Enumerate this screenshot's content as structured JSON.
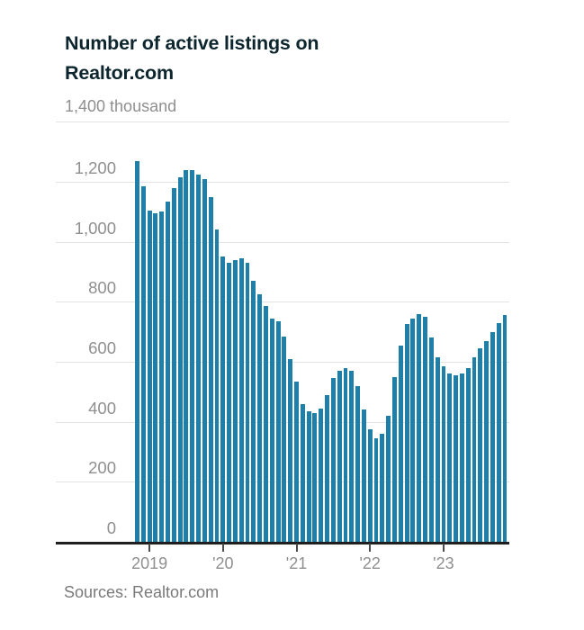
{
  "title": {
    "line1": "Number of active listings on",
    "line2": "Realtor.com"
  },
  "source": "Sources: Realtor.com",
  "y_axis": {
    "unit_label": "1,400 thousand",
    "unit_value": 1400,
    "ticks": [
      {
        "label": "1,200",
        "value": 1200
      },
      {
        "label": "1,000",
        "value": 1000
      },
      {
        "label": "800",
        "value": 800
      },
      {
        "label": "600",
        "value": 600
      },
      {
        "label": "400",
        "value": 400
      },
      {
        "label": "200",
        "value": 200
      },
      {
        "label": "0",
        "value": 0
      }
    ]
  },
  "x_axis": {
    "ticks": [
      {
        "label": "2019",
        "month_index": 2
      },
      {
        "label": "'20",
        "month_index": 14
      },
      {
        "label": "'21",
        "month_index": 26
      },
      {
        "label": "'22",
        "month_index": 38
      },
      {
        "label": "'23",
        "month_index": 50
      }
    ]
  },
  "colors": {
    "bar": "#1e7fa8",
    "title_text": "#0d262e",
    "axis_text": "#8f8f8f",
    "gridline": "#e3e3e3",
    "axis_line": "#1f1f1f",
    "tick_mark": "#4a4a4a",
    "source_text": "#7a7a7a"
  },
  "chart_data": {
    "type": "bar",
    "title": "Number of active listings on Realtor.com",
    "ylabel": "thousand",
    "ylim": [
      0,
      1400
    ],
    "gridline_step": 200,
    "grid": true,
    "legend": false,
    "x": [
      "Nov 2018",
      "Dec 2018",
      "Jan 2019",
      "Feb 2019",
      "Mar 2019",
      "Apr 2019",
      "May 2019",
      "Jun 2019",
      "Jul 2019",
      "Aug 2019",
      "Sep 2019",
      "Oct 2019",
      "Nov 2019",
      "Dec 2019",
      "Jan 2020",
      "Feb 2020",
      "Mar 2020",
      "Apr 2020",
      "May 2020",
      "Jun 2020",
      "Jul 2020",
      "Aug 2020",
      "Sep 2020",
      "Oct 2020",
      "Nov 2020",
      "Dec 2020",
      "Jan 2021",
      "Feb 2021",
      "Mar 2021",
      "Apr 2021",
      "May 2021",
      "Jun 2021",
      "Jul 2021",
      "Aug 2021",
      "Sep 2021",
      "Oct 2021",
      "Nov 2021",
      "Dec 2021",
      "Jan 2022",
      "Feb 2022",
      "Mar 2022",
      "Apr 2022",
      "May 2022",
      "Jun 2022",
      "Jul 2022",
      "Aug 2022",
      "Sep 2022",
      "Oct 2022",
      "Nov 2022",
      "Dec 2022",
      "Jan 2023",
      "Feb 2023",
      "Mar 2023",
      "Apr 2023",
      "May 2023",
      "Jun 2023",
      "Jul 2023",
      "Aug 2023",
      "Sep 2023",
      "Oct 2023",
      "Nov 2023"
    ],
    "values": [
      1270,
      1185,
      1105,
      1095,
      1100,
      1135,
      1180,
      1215,
      1240,
      1240,
      1225,
      1210,
      1150,
      1040,
      950,
      930,
      940,
      945,
      930,
      870,
      825,
      785,
      745,
      735,
      685,
      610,
      535,
      460,
      435,
      430,
      445,
      490,
      545,
      570,
      580,
      570,
      520,
      440,
      375,
      345,
      360,
      420,
      550,
      655,
      725,
      745,
      760,
      750,
      680,
      615,
      585,
      560,
      555,
      560,
      580,
      615,
      645,
      670,
      700,
      730,
      755
    ],
    "x_tick_labels": [
      "2019",
      "'20",
      "'21",
      "'22",
      "'23"
    ],
    "x_tick_months": [
      "Jan 2019",
      "Jan 2020",
      "Jan 2021",
      "Jan 2022",
      "Jan 2023"
    ],
    "unit_note": "values in thousands of listings"
  }
}
